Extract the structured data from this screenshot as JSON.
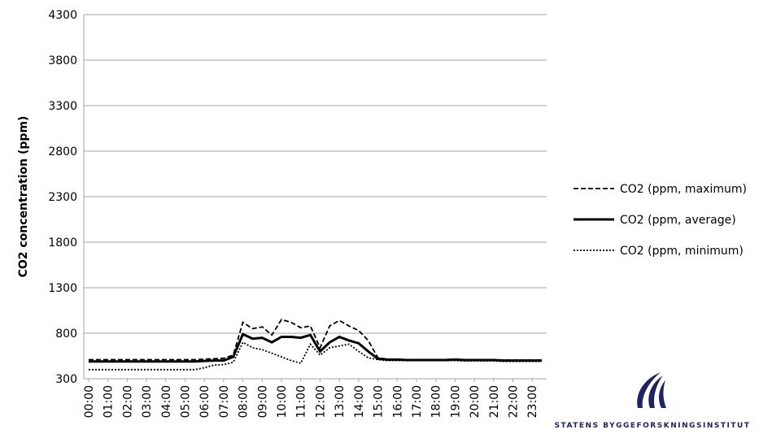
{
  "chart_data": {
    "type": "line",
    "y_label": "CO2 concentration (ppm)",
    "categories": [
      "00:00",
      null,
      "01:00",
      null,
      "02:00",
      null,
      "03:00",
      null,
      "04:00",
      null,
      "05:00",
      null,
      "06:00",
      null,
      "07:00",
      null,
      "08:00",
      null,
      "09:00",
      null,
      "10:00",
      null,
      "11:00",
      null,
      "12:00",
      null,
      "13:00",
      null,
      "14:00",
      null,
      "15:00",
      null,
      "16:00",
      null,
      "17:00",
      null,
      "18:00",
      null,
      "19:00",
      null,
      "20:00",
      null,
      "21:00",
      null,
      "22:00",
      null,
      "23:00",
      null
    ],
    "series": [
      {
        "name": "CO2 (ppm, maximum)",
        "color": "#000000",
        "dash": "dashed",
        "values": [
          510,
          510,
          510,
          510,
          510,
          510,
          510,
          510,
          510,
          510,
          510,
          510,
          515,
          520,
          525,
          560,
          920,
          850,
          870,
          780,
          950,
          920,
          860,
          880,
          640,
          880,
          940,
          880,
          830,
          720,
          530,
          515,
          515,
          510,
          510,
          510,
          510,
          510,
          515,
          510,
          510,
          510,
          510,
          505,
          505,
          505,
          505,
          505
        ]
      },
      {
        "name": "CO2 (ppm, average)",
        "color": "#000000",
        "dash": "solid",
        "values": [
          490,
          490,
          490,
          490,
          490,
          490,
          490,
          490,
          490,
          490,
          490,
          490,
          495,
          500,
          500,
          540,
          790,
          740,
          750,
          700,
          760,
          760,
          750,
          780,
          600,
          700,
          760,
          720,
          690,
          600,
          520,
          510,
          510,
          505,
          505,
          505,
          505,
          505,
          510,
          505,
          505,
          505,
          505,
          500,
          500,
          500,
          500,
          500
        ]
      },
      {
        "name": "CO2 (ppm, minimum)",
        "color": "#000000",
        "dash": "dotted",
        "values": [
          400,
          400,
          400,
          400,
          400,
          400,
          400,
          400,
          400,
          400,
          400,
          400,
          420,
          450,
          455,
          480,
          700,
          640,
          620,
          580,
          540,
          500,
          470,
          680,
          560,
          640,
          660,
          680,
          600,
          530,
          510,
          500,
          500,
          500,
          500,
          500,
          500,
          500,
          500,
          495,
          495,
          495,
          495,
          490,
          490,
          490,
          490,
          490
        ]
      }
    ],
    "ylim": [
      300,
      4300
    ],
    "yticks": [
      300,
      800,
      1300,
      1800,
      2300,
      2800,
      3300,
      3800,
      4300
    ],
    "grid": true,
    "legend": "right"
  },
  "logo": {
    "text": "STATENS BYGGEFORSKNINGSINSTITUT"
  }
}
